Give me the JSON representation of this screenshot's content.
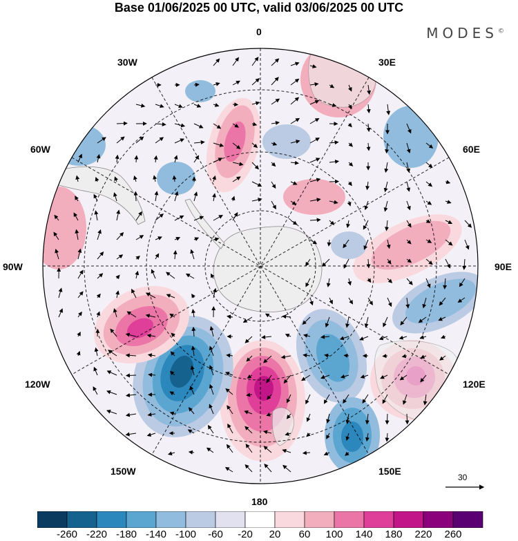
{
  "title": "Base 01/06/2025 00 UTC, valid 03/06/2025 00 UTC",
  "brand": "MODES",
  "brand_mark": "©",
  "lon_labels": {
    "n0": "0",
    "e30": "30E",
    "e60": "60E",
    "e90": "90E",
    "e120": "120E",
    "e150": "150E",
    "s180": "180",
    "w150": "150W",
    "w120": "120W",
    "w90": "90W",
    "w60": "60W",
    "w30": "30W"
  },
  "vector_reference": "30",
  "colorbar": {
    "ticks": [
      "-260",
      "-220",
      "-180",
      "-140",
      "-100",
      "-60",
      "-20",
      "20",
      "60",
      "100",
      "140",
      "180",
      "220",
      "260"
    ],
    "colors": [
      "#0b3b5e",
      "#16628f",
      "#2b87bc",
      "#5aa6d1",
      "#91bcdd",
      "#bccbe4",
      "#e1e1ef",
      "#ffffff",
      "#f9d9dd",
      "#f3aebd",
      "#ec75a8",
      "#df3e99",
      "#c21587",
      "#8b007b",
      "#5a0072"
    ]
  },
  "anomaly_centers": [
    {
      "id": "pos-180",
      "lon": 180,
      "sign": "positive",
      "peak": "220"
    },
    {
      "id": "neg-150w",
      "lon": -150,
      "sign": "negative",
      "peak": "-220"
    },
    {
      "id": "pos-120w",
      "lon": -120,
      "sign": "positive",
      "peak": "180"
    },
    {
      "id": "neg-150e",
      "lon": 150,
      "sign": "negative",
      "peak": "-180"
    },
    {
      "id": "pos-120e",
      "lon": 120,
      "sign": "positive",
      "peak": "180"
    },
    {
      "id": "neg-90e",
      "lon": 100,
      "sign": "negative",
      "peak": "-140"
    },
    {
      "id": "pos-60e",
      "lon": 70,
      "sign": "positive",
      "peak": "140"
    },
    {
      "id": "pos-0",
      "lon": -5,
      "sign": "positive",
      "peak": "140"
    },
    {
      "id": "neg-60e",
      "lon": 50,
      "sign": "negative",
      "peak": "-100"
    },
    {
      "id": "pos-30e",
      "lon": 30,
      "sign": "positive",
      "peak": "60"
    },
    {
      "id": "neg-60w",
      "lon": -60,
      "sign": "negative",
      "peak": "-100"
    },
    {
      "id": "pos-90w",
      "lon": -90,
      "sign": "positive",
      "peak": "100"
    }
  ]
}
